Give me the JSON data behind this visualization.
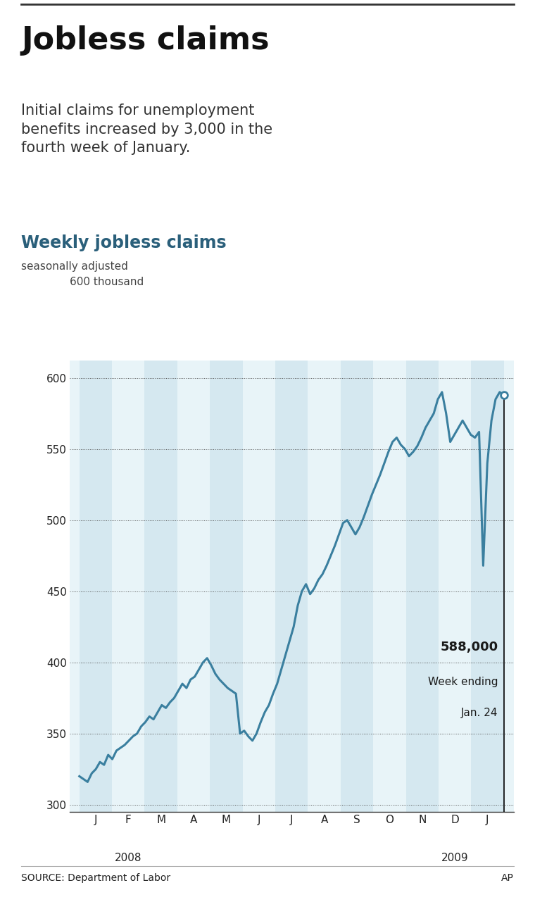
{
  "title": "Jobless claims",
  "subtitle": "Initial claims for unemployment\nbenefits increased by 3,000 in the\nfourth week of January.",
  "chart_title": "Weekly jobless claims",
  "chart_subtitle": "seasonally adjusted",
  "source": "SOURCE: Department of Labor",
  "credit": "AP",
  "annotation_value": "588,000",
  "annotation_line1": "Week ending",
  "annotation_line2": "Jan. 24",
  "yticks": [
    300,
    350,
    400,
    450,
    500,
    550,
    600
  ],
  "ylim": [
    295,
    612
  ],
  "line_color": "#3a7f9f",
  "band_color": "#d5e8f0",
  "bg_color": "#ffffff",
  "annotation_color": "#1a1a1a",
  "x_month_labels": [
    "J",
    "F",
    "M",
    "A",
    "M",
    "J",
    "J",
    "A",
    "S",
    "O",
    "N",
    "D",
    "J"
  ],
  "weekly_data": [
    320,
    318,
    316,
    322,
    325,
    330,
    328,
    335,
    332,
    338,
    340,
    342,
    345,
    348,
    350,
    355,
    358,
    362,
    360,
    365,
    370,
    368,
    372,
    375,
    380,
    385,
    382,
    388,
    390,
    395,
    400,
    403,
    398,
    392,
    388,
    385,
    382,
    380,
    378,
    350,
    352,
    348,
    345,
    350,
    358,
    365,
    370,
    378,
    385,
    395,
    405,
    415,
    425,
    440,
    450,
    455,
    448,
    452,
    458,
    462,
    468,
    475,
    482,
    490,
    498,
    500,
    495,
    490,
    495,
    502,
    510,
    518,
    525,
    532,
    540,
    548,
    555,
    558,
    553,
    550,
    545,
    548,
    552,
    558,
    565,
    570,
    575,
    585,
    590,
    575,
    555,
    560,
    565,
    570,
    565,
    560,
    558,
    562,
    468,
    540,
    570,
    585,
    590,
    588
  ]
}
